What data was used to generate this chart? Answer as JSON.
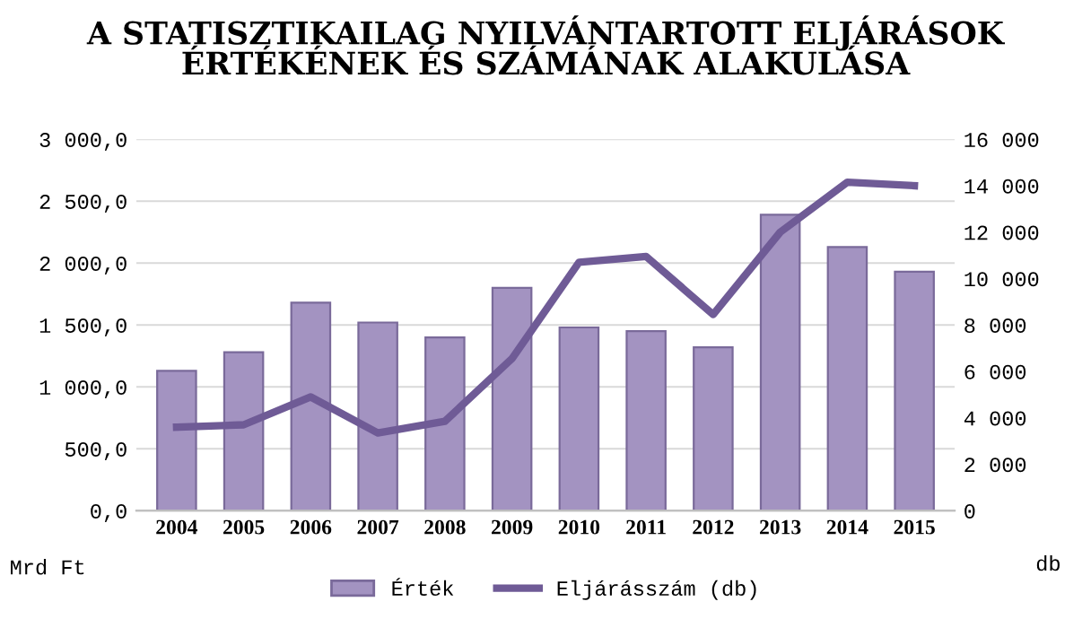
{
  "chart_data": {
    "type": "bar",
    "title": "A STATISZTIKAILAG NYILVÁNTARTOTT ELJÁRÁSOK ÉRTÉKÉNEK ÉS SZÁMÁNAK ALAKULÁSA",
    "categories": [
      "2004",
      "2005",
      "2006",
      "2007",
      "2008",
      "2009",
      "2010",
      "2011",
      "2012",
      "2013",
      "2014",
      "2015"
    ],
    "series": [
      {
        "name": "Érték",
        "color": "#a393c1",
        "values": [
          1130,
          1280,
          1680,
          1520,
          1400,
          1800,
          1480,
          1450,
          1320,
          2390,
          2130,
          1930
        ]
      },
      {
        "name": "Eljárásszám (db)",
        "type": "line",
        "axis": "y2",
        "color": "#6f5b96",
        "values": [
          3600,
          3700,
          4900,
          3350,
          3850,
          6550,
          10700,
          10950,
          8450,
          12000,
          14150,
          14000
        ]
      }
    ],
    "ylabel": "Mrd Ft",
    "y2label": "db",
    "ylim": [
      0,
      3000
    ],
    "yticks": [
      {
        "value": 0,
        "label": "0,0"
      },
      {
        "value": 500,
        "label": "500,0"
      },
      {
        "value": 1000,
        "label": "1 000,0"
      },
      {
        "value": 1500,
        "label": "1 500,0"
      },
      {
        "value": 2000,
        "label": "2 000,0"
      },
      {
        "value": 2500,
        "label": "2 500,0"
      },
      {
        "value": 3000,
        "label": "3 000,0"
      }
    ],
    "y2lim": [
      0,
      16000
    ],
    "y2ticks": [
      0,
      {
        "value": 2000,
        "label": "2 000"
      },
      {
        "value": 4000,
        "label": "4 000"
      },
      {
        "value": 6000,
        "label": "6 000"
      },
      {
        "value": 8000,
        "label": "8 000"
      },
      {
        "value": 10000,
        "label": "10 000"
      },
      {
        "value": 12000,
        "label": "12 000"
      },
      {
        "value": 14000,
        "label": "14 000"
      },
      {
        "value": 16000,
        "label": "16 000"
      }
    ],
    "grid": "y",
    "legend": "bottom",
    "marker": "none",
    "line_style": "solid"
  }
}
